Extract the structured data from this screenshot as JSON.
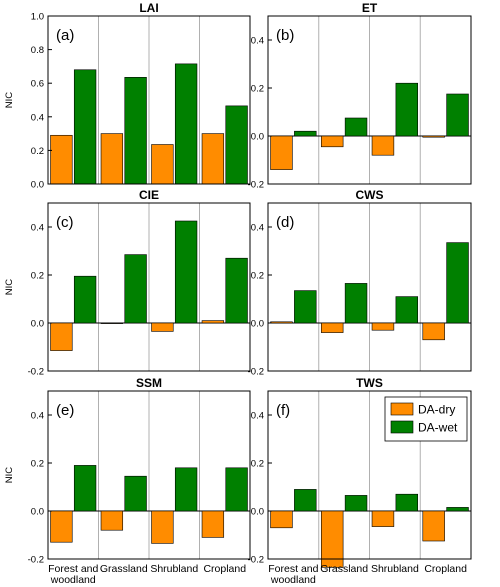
{
  "chart_data": [
    {
      "type": "bar",
      "title": "LAI",
      "panel_label": "(a)",
      "ylabel": "NIC",
      "ylim": [
        0.0,
        1.0
      ],
      "yticks": [
        0.0,
        0.2,
        0.4,
        0.6,
        0.8,
        1.0
      ],
      "ytick_labels": [
        "0.0",
        "0.2",
        "0.4",
        "0.6",
        "0.8",
        "1.0"
      ],
      "categories": [
        "Forest and woodland",
        "Grassland",
        "Shrubland",
        "Cropland"
      ],
      "series": [
        {
          "name": "DA-dry",
          "values": [
            0.29,
            0.3,
            0.235,
            0.3
          ]
        },
        {
          "name": "DA-wet",
          "values": [
            0.68,
            0.635,
            0.715,
            0.465
          ]
        }
      ]
    },
    {
      "type": "bar",
      "title": "ET",
      "panel_label": "(b)",
      "ylabel": "",
      "ylim": [
        -0.2,
        0.5
      ],
      "yticks": [
        -0.2,
        0.0,
        0.2,
        0.4
      ],
      "ytick_labels": [
        "-0.2",
        "0.0",
        "0.2",
        "0.4"
      ],
      "categories": [
        "Forest and woodland",
        "Grassland",
        "Shrubland",
        "Cropland"
      ],
      "series": [
        {
          "name": "DA-dry",
          "values": [
            -0.14,
            -0.045,
            -0.08,
            -0.005
          ]
        },
        {
          "name": "DA-wet",
          "values": [
            0.02,
            0.075,
            0.22,
            0.175
          ]
        }
      ]
    },
    {
      "type": "bar",
      "title": "CIE",
      "panel_label": "(c)",
      "ylabel": "NIC",
      "ylim": [
        -0.2,
        0.5
      ],
      "yticks": [
        -0.2,
        0.0,
        0.2,
        0.4
      ],
      "ytick_labels": [
        "-0.2",
        "0.0",
        "0.2",
        "0.4"
      ],
      "categories": [
        "Forest and woodland",
        "Grassland",
        "Shrubland",
        "Cropland"
      ],
      "series": [
        {
          "name": "DA-dry",
          "values": [
            -0.115,
            -0.002,
            -0.035,
            0.01
          ]
        },
        {
          "name": "DA-wet",
          "values": [
            0.195,
            0.285,
            0.425,
            0.27
          ]
        }
      ]
    },
    {
      "type": "bar",
      "title": "CWS",
      "panel_label": "(d)",
      "ylabel": "",
      "ylim": [
        -0.2,
        0.5
      ],
      "yticks": [
        -0.2,
        0.0,
        0.2,
        0.4
      ],
      "ytick_labels": [
        "-0.2",
        "0.0",
        "0.2",
        "0.4"
      ],
      "categories": [
        "Forest and woodland",
        "Grassland",
        "Shrubland",
        "Cropland"
      ],
      "series": [
        {
          "name": "DA-dry",
          "values": [
            0.005,
            -0.04,
            -0.03,
            -0.07
          ]
        },
        {
          "name": "DA-wet",
          "values": [
            0.135,
            0.165,
            0.11,
            0.335
          ]
        }
      ]
    },
    {
      "type": "bar",
      "title": "SSM",
      "panel_label": "(e)",
      "ylabel": "NIC",
      "ylim": [
        -0.2,
        0.5
      ],
      "yticks": [
        -0.2,
        0.0,
        0.2,
        0.4
      ],
      "ytick_labels": [
        "-0.2",
        "0.0",
        "0.2",
        "0.4"
      ],
      "categories": [
        "Forest and woodland",
        "Grassland",
        "Shrubland",
        "Cropland"
      ],
      "series": [
        {
          "name": "DA-dry",
          "values": [
            -0.13,
            -0.08,
            -0.135,
            -0.11
          ]
        },
        {
          "name": "DA-wet",
          "values": [
            0.19,
            0.145,
            0.18,
            0.18
          ]
        }
      ]
    },
    {
      "type": "bar",
      "title": "TWS",
      "panel_label": "(f)",
      "ylabel": "",
      "ylim": [
        -0.2,
        0.5
      ],
      "yticks": [
        -0.2,
        0.0,
        0.2,
        0.4
      ],
      "ytick_labels": [
        "-0.2",
        "0.0",
        "0.2",
        "0.4"
      ],
      "categories": [
        "Forest and woodland",
        "Grassland",
        "Shrubland",
        "Cropland"
      ],
      "series": [
        {
          "name": "DA-dry",
          "values": [
            -0.07,
            -0.235,
            -0.065,
            -0.125
          ]
        },
        {
          "name": "DA-wet",
          "values": [
            0.09,
            0.065,
            0.07,
            0.015
          ]
        }
      ],
      "legend": {
        "placement": "top-right",
        "entries": [
          "DA-dry",
          "DA-wet"
        ]
      }
    }
  ],
  "x_category_labels": [
    [
      "Forest and",
      "woodland"
    ],
    [
      "Grassland"
    ],
    [
      "Shrubland"
    ],
    [
      "Cropland"
    ]
  ],
  "colors": {
    "DA-dry": "#FF8C00",
    "DA-wet": "#008000",
    "axis": "#000000",
    "separator": "#b0b0b0"
  }
}
